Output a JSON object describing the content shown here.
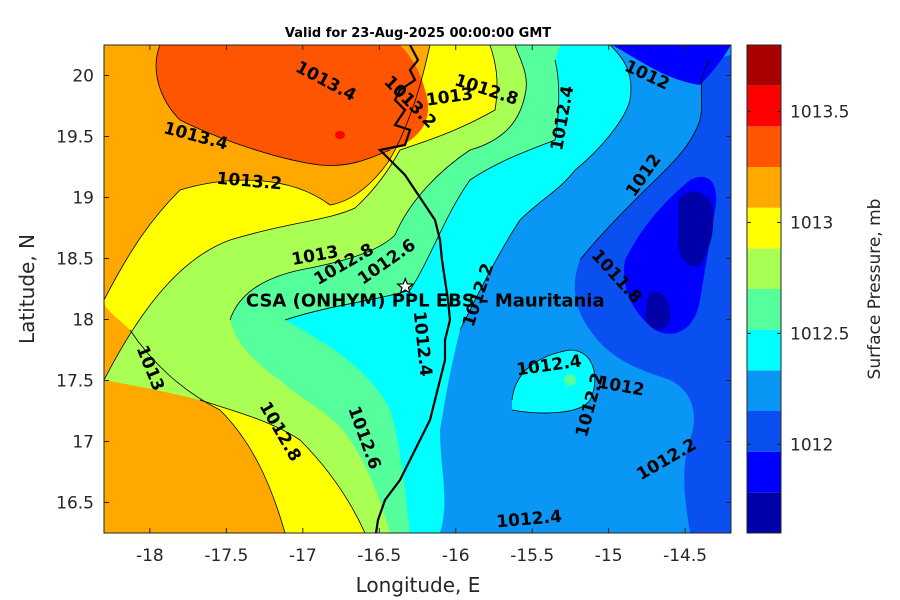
{
  "chart_data": {
    "type": "contour",
    "title": "Valid for 23-Aug-2025 00:00:00 GMT",
    "xlabel": "Longitude, E",
    "ylabel": "Latitude, N",
    "xlim": [
      -18.3,
      -14.2
    ],
    "ylim": [
      16.25,
      20.25
    ],
    "xticks": [
      -18,
      -17.5,
      -17,
      -16.5,
      -16,
      -15.5,
      -15,
      -14.5
    ],
    "xtick_labels": [
      "-18",
      "-17.5",
      "-17",
      "-16.5",
      "-16",
      "-15.5",
      "-15",
      "-14.5"
    ],
    "yticks": [
      16.5,
      17,
      17.5,
      18,
      18.5,
      19,
      19.5,
      20
    ],
    "ytick_labels": [
      "16.5",
      "17",
      "17.5",
      "18",
      "18.5",
      "19",
      "19.5",
      "20"
    ],
    "colorbar": {
      "label": "Surface Pressure, mb",
      "levels": [
        1011.6,
        1011.7,
        1011.8,
        1011.9,
        1012.0,
        1012.1,
        1012.2,
        1012.3,
        1012.4,
        1012.5,
        1012.6,
        1012.7,
        1012.8,
        1012.9,
        1013.0,
        1013.1,
        1013.2,
        1013.3,
        1013.4,
        1013.5,
        1013.6,
        1013.7,
        1013.8
      ],
      "colors": [
        "#0000a8",
        "#0000ff",
        "#0a50f0",
        "#0a96f5",
        "#00ffff",
        "#55ff9c",
        "#aaff55",
        "#ffff00",
        "#ffa900",
        "#ff5400",
        "#ff0000",
        "#a80000"
      ],
      "ticks": [
        1012,
        1012.5,
        1013,
        1013.5
      ],
      "tick_labels": [
        "1012",
        "1012.5",
        "1013",
        "1013.5"
      ]
    },
    "site": {
      "name": "CSA (ONHYM) PPL EBS - Mauritania",
      "lon": -16.33,
      "lat": 18.27
    },
    "contour_labels": [
      {
        "text": "1013.4",
        "lon": -16.85,
        "lat": 19.95,
        "rot": 28
      },
      {
        "text": "1013.2",
        "lon": -16.3,
        "lat": 19.78,
        "rot": 45
      },
      {
        "text": "1013",
        "lon": -16.04,
        "lat": 19.82,
        "rot": -8
      },
      {
        "text": "1012.8",
        "lon": -15.8,
        "lat": 19.88,
        "rot": 18
      },
      {
        "text": "1012.4",
        "lon": -15.3,
        "lat": 19.65,
        "rot": -80
      },
      {
        "text": "1012",
        "lon": -14.75,
        "lat": 20.0,
        "rot": 25
      },
      {
        "text": "1013.4",
        "lon": -17.7,
        "lat": 19.5,
        "rot": 15
      },
      {
        "text": "1013.2",
        "lon": -17.35,
        "lat": 19.13,
        "rot": 5
      },
      {
        "text": "1012",
        "lon": -14.77,
        "lat": 19.18,
        "rot": -55
      },
      {
        "text": "1013",
        "lon": -16.92,
        "lat": 18.52,
        "rot": -10
      },
      {
        "text": "1012.8",
        "lon": -16.73,
        "lat": 18.45,
        "rot": -30
      },
      {
        "text": "1012.6",
        "lon": -16.45,
        "lat": 18.47,
        "rot": -35
      },
      {
        "text": "1012.2",
        "lon": -15.85,
        "lat": 18.2,
        "rot": -72
      },
      {
        "text": "1011.8",
        "lon": -14.95,
        "lat": 18.35,
        "rot": 48
      },
      {
        "text": "1012.4",
        "lon": -16.22,
        "lat": 17.8,
        "rot": 84
      },
      {
        "text": "1013",
        "lon": -18.0,
        "lat": 17.6,
        "rot": 68
      },
      {
        "text": "1012.4",
        "lon": -15.39,
        "lat": 17.62,
        "rot": -8
      },
      {
        "text": "1012.2",
        "lon": -15.12,
        "lat": 17.3,
        "rot": -75
      },
      {
        "text": "1012",
        "lon": -14.92,
        "lat": 17.45,
        "rot": 10
      },
      {
        "text": "1012.8",
        "lon": -17.15,
        "lat": 17.08,
        "rot": 60
      },
      {
        "text": "1012.6",
        "lon": -16.6,
        "lat": 17.03,
        "rot": 70
      },
      {
        "text": "1012.2",
        "lon": -14.62,
        "lat": 16.85,
        "rot": -30
      },
      {
        "text": "1012.4",
        "lon": -15.52,
        "lat": 16.36,
        "rot": -5
      }
    ]
  }
}
